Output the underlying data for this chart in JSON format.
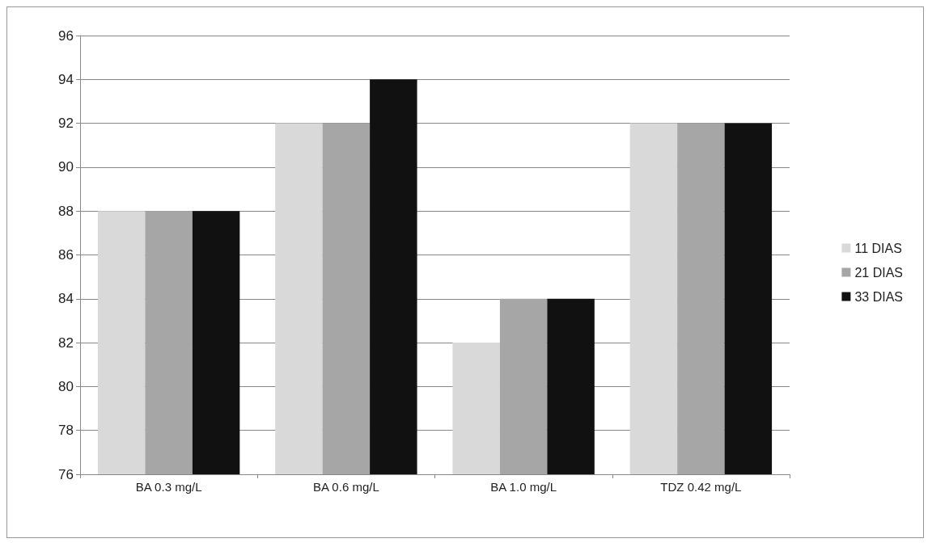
{
  "chart_data": {
    "type": "bar",
    "categories": [
      "BA 0.3 mg/L",
      "BA 0.6 mg/L",
      "BA 1.0 mg/L",
      "TDZ 0.42 mg/L"
    ],
    "series": [
      {
        "name": "11 DIAS",
        "color": "#d9d9d9",
        "values": [
          88,
          92,
          82,
          92
        ]
      },
      {
        "name": "21 DIAS",
        "color": "#a6a6a6",
        "values": [
          88,
          92,
          84,
          92
        ]
      },
      {
        "name": "33 DIAS",
        "color": "#111111",
        "values": [
          88,
          94,
          84,
          92
        ]
      }
    ],
    "ylim": [
      76,
      96
    ],
    "yticks": [
      76,
      78,
      80,
      82,
      84,
      86,
      88,
      90,
      92,
      94,
      96
    ],
    "grid": "y",
    "legend": "right"
  }
}
